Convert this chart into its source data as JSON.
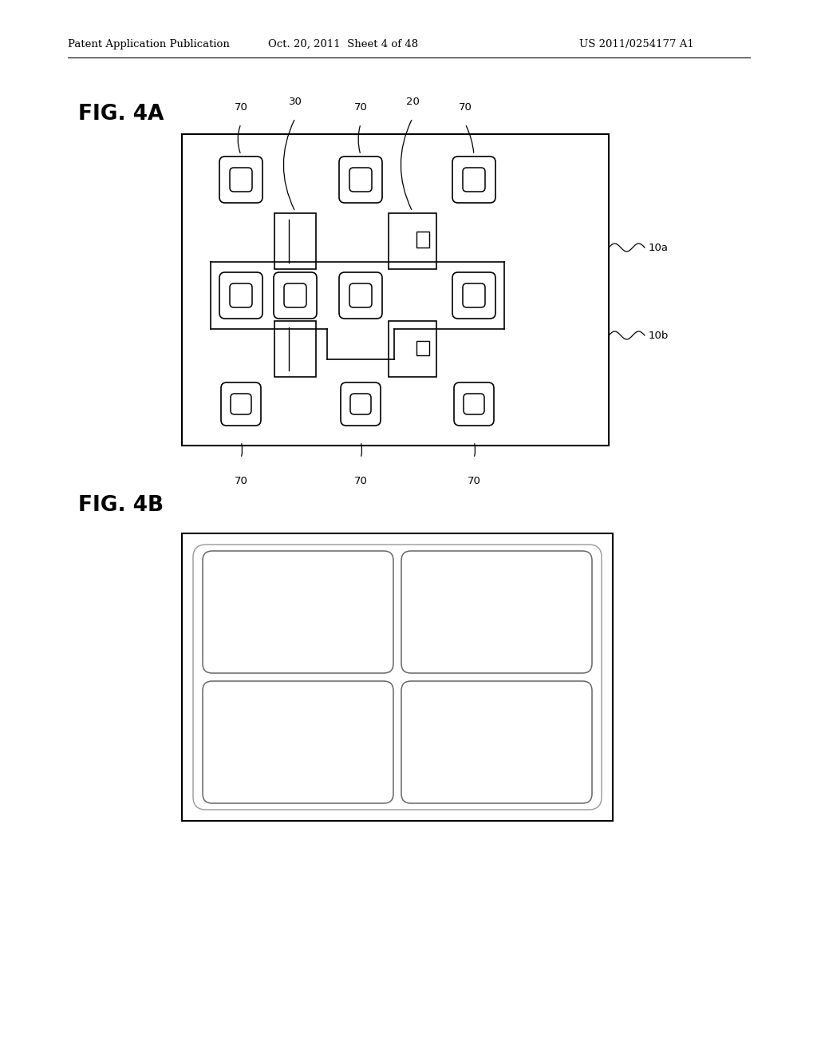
{
  "bg_color": "#ffffff",
  "lc": "#000000",
  "fig_width": 10.24,
  "fig_height": 13.2,
  "header_left": "Patent Application Publication",
  "header_mid": "Oct. 20, 2011  Sheet 4 of 48",
  "header_right": "US 2011/0254177 A1",
  "fig4a_label": "FIG. 4A",
  "fig4b_label": "FIG. 4B"
}
